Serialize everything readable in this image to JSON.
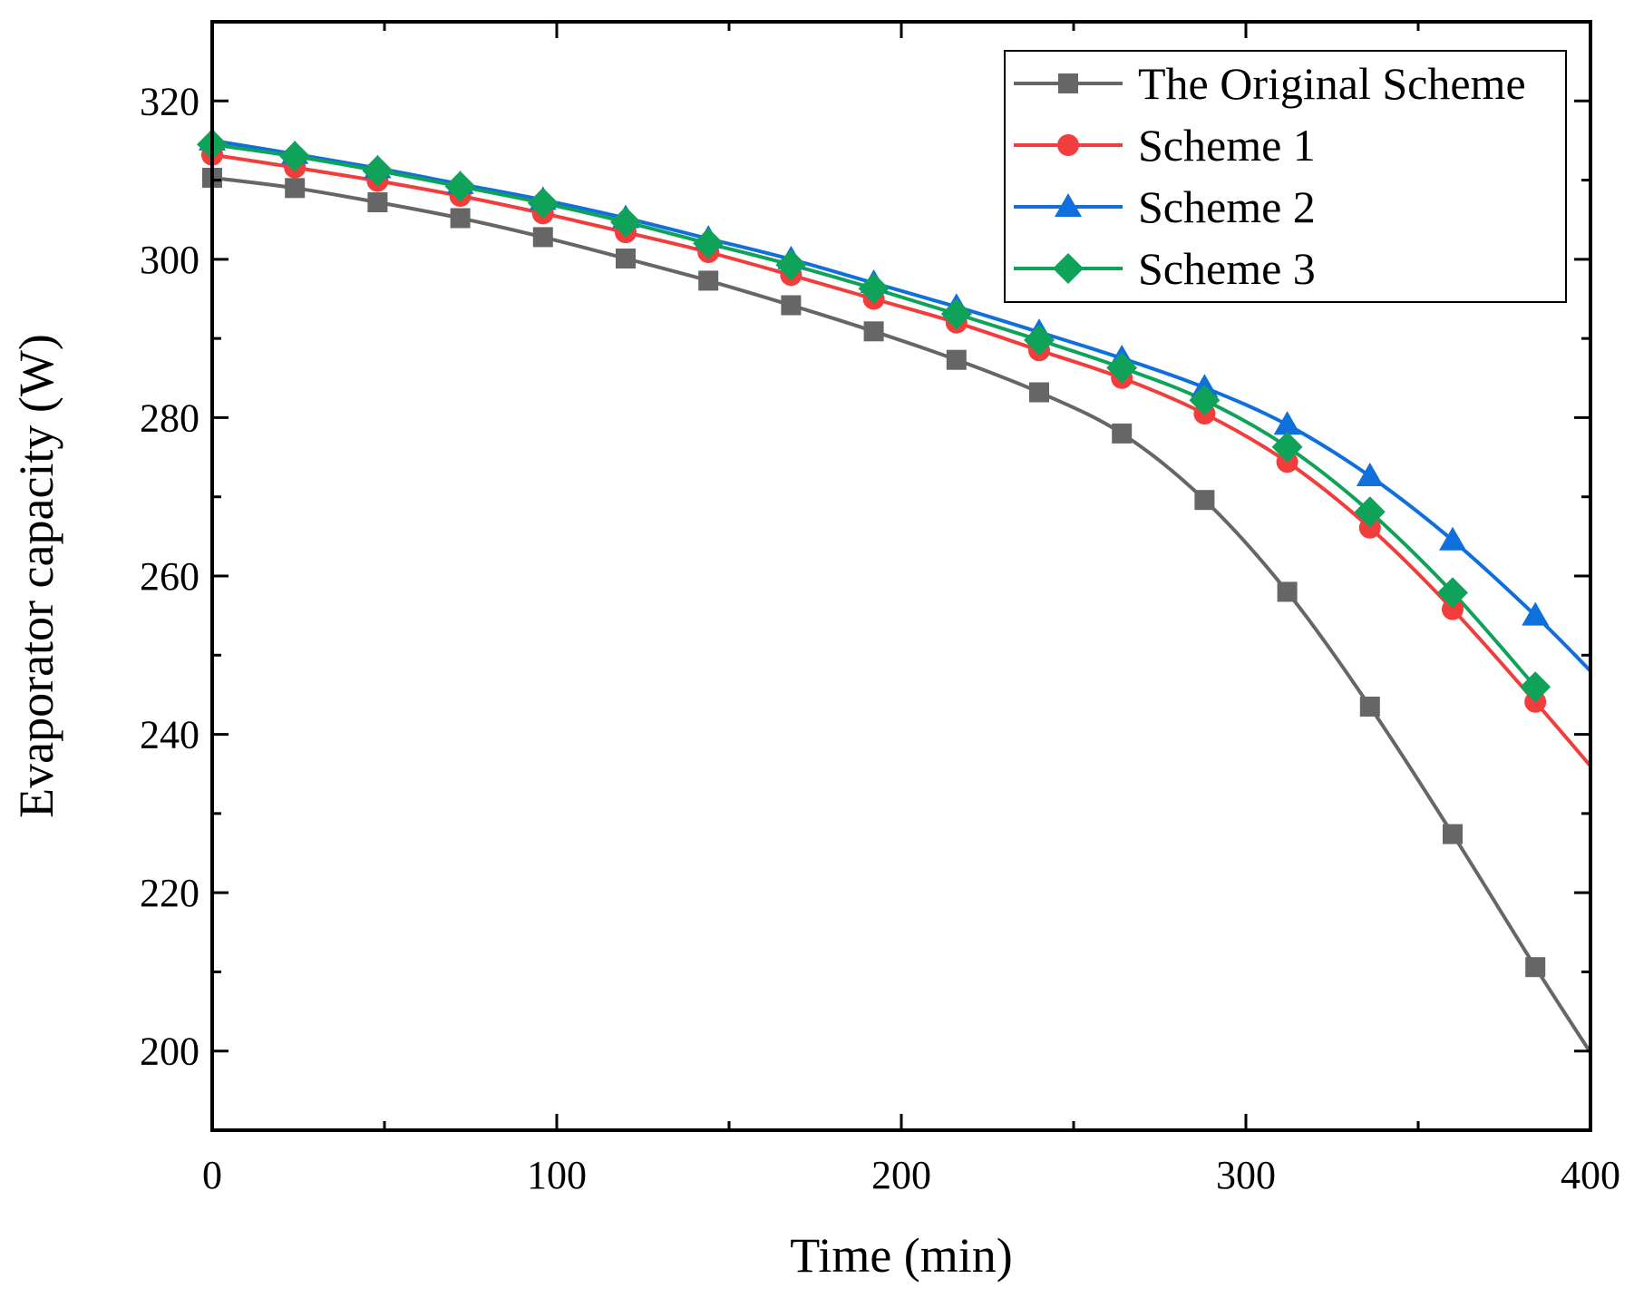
{
  "chart_data": {
    "type": "line",
    "title": "",
    "xlabel": "Time (min)",
    "ylabel": "Evaporator capacity (W)",
    "xlim": [
      0,
      400
    ],
    "ylim": [
      190,
      330
    ],
    "xticks": [
      0,
      100,
      200,
      300,
      400
    ],
    "xtick_labels": [
      "0",
      "100",
      "200",
      "300",
      "400"
    ],
    "yticks": [
      200,
      220,
      240,
      260,
      280,
      300,
      320
    ],
    "ytick_labels": [
      "200",
      "220",
      "240",
      "260",
      "280",
      "300",
      "320"
    ],
    "grid": false,
    "legend_position": "top-right",
    "marker_x": [
      0,
      24,
      48,
      72,
      96,
      120,
      144,
      168,
      192,
      216,
      240,
      264,
      288,
      312,
      336,
      360,
      384
    ],
    "series": [
      {
        "name": "The Original Scheme",
        "color": "#666666",
        "marker": "square",
        "values": [
          310.3,
          309.0,
          307.2,
          305.2,
          302.8,
          300.1,
          297.3,
          294.2,
          290.9,
          287.3,
          283.2,
          278.0,
          269.6,
          258.0,
          243.5,
          227.4,
          210.6
        ],
        "end": [
          400,
          199.8
        ]
      },
      {
        "name": "Scheme 1",
        "color": "#f23d3d",
        "marker": "circle",
        "values": [
          313.2,
          311.6,
          309.9,
          308.0,
          305.8,
          303.4,
          300.9,
          298.0,
          295.0,
          292.0,
          288.5,
          285.0,
          280.5,
          274.4,
          266.1,
          255.8,
          244.1
        ],
        "end": [
          400,
          236.0
        ]
      },
      {
        "name": "Scheme 2",
        "color": "#0f6fdd",
        "marker": "triangle",
        "values": [
          315.0,
          313.3,
          311.5,
          309.5,
          307.5,
          305.2,
          302.6,
          300.0,
          297.0,
          294.0,
          290.8,
          287.5,
          283.8,
          279.1,
          272.6,
          264.5,
          255.0
        ],
        "end": [
          400,
          248.0
        ]
      },
      {
        "name": "Scheme 3",
        "color": "#0ea358",
        "marker": "diamond",
        "values": [
          314.5,
          313.0,
          311.2,
          309.2,
          307.1,
          304.7,
          302.0,
          299.3,
          296.3,
          293.1,
          289.8,
          286.3,
          282.2,
          276.3,
          268.1,
          257.9,
          246.0
        ]
      }
    ]
  }
}
